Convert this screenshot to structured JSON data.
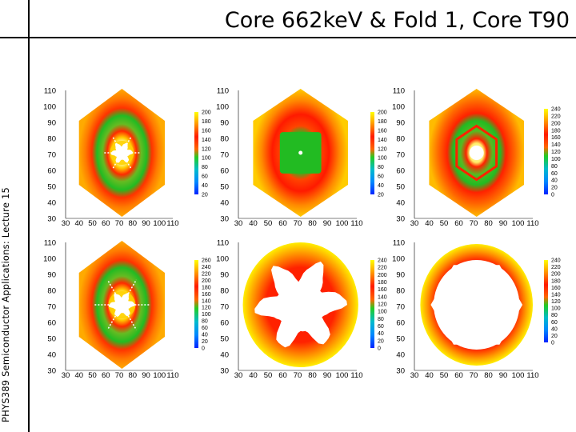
{
  "slide": {
    "title": "Core 662keV & Fold 1, Core T90",
    "side_label": "PHYS389 Semiconductor Applications: Lecture 15"
  },
  "chart_data": [
    {
      "type": "heatmap",
      "pattern": "hex-ring-star",
      "xlim": [
        30,
        110
      ],
      "ylim": [
        30,
        110
      ],
      "xticks": [
        "30",
        "40",
        "50",
        "60",
        "70",
        "80",
        "90",
        "100",
        "110"
      ],
      "yticks": [
        "30",
        "40",
        "50",
        "60",
        "70",
        "80",
        "90",
        "100",
        "110"
      ],
      "colorbar": [
        "200",
        "180",
        "160",
        "140",
        "120",
        "100",
        "80",
        "60",
        "40",
        "20"
      ]
    },
    {
      "type": "heatmap",
      "pattern": "hex-square-core",
      "xlim": [
        30,
        110
      ],
      "ylim": [
        30,
        110
      ],
      "xticks": [
        "30",
        "40",
        "50",
        "60",
        "70",
        "80",
        "90",
        "100",
        "110"
      ],
      "yticks": [
        "30",
        "40",
        "50",
        "60",
        "70",
        "80",
        "90",
        "100",
        "110"
      ],
      "colorbar": [
        "200",
        "180",
        "160",
        "140",
        "120",
        "100",
        "80",
        "60",
        "40",
        "20"
      ]
    },
    {
      "type": "heatmap",
      "pattern": "hex-hex-ring",
      "xlim": [
        30,
        110
      ],
      "ylim": [
        30,
        110
      ],
      "xticks": [
        "30",
        "40",
        "50",
        "60",
        "70",
        "80",
        "90",
        "100",
        "110"
      ],
      "yticks": [
        "30",
        "40",
        "50",
        "60",
        "70",
        "80",
        "90",
        "100",
        "110"
      ],
      "colorbar": [
        "240",
        "220",
        "200",
        "180",
        "160",
        "140",
        "120",
        "100",
        "80",
        "60",
        "40",
        "20",
        "0"
      ]
    },
    {
      "type": "heatmap",
      "pattern": "hex-ring-star",
      "xlim": [
        30,
        110
      ],
      "ylim": [
        30,
        110
      ],
      "xticks": [
        "30",
        "40",
        "50",
        "60",
        "70",
        "80",
        "90",
        "100",
        "110"
      ],
      "yticks": [
        "30",
        "40",
        "50",
        "60",
        "70",
        "80",
        "90",
        "100",
        "110"
      ],
      "colorbar": [
        "260",
        "240",
        "220",
        "200",
        "180",
        "160",
        "140",
        "120",
        "100",
        "80",
        "60",
        "40",
        "20",
        "0"
      ]
    },
    {
      "type": "heatmap",
      "pattern": "circle-star-hole",
      "xlim": [
        30,
        110
      ],
      "ylim": [
        30,
        110
      ],
      "xticks": [
        "30",
        "40",
        "50",
        "60",
        "70",
        "80",
        "90",
        "100",
        "110"
      ],
      "yticks": [
        "30",
        "40",
        "50",
        "60",
        "70",
        "80",
        "90",
        "100",
        "110"
      ],
      "colorbar": [
        "240",
        "220",
        "200",
        "180",
        "160",
        "140",
        "120",
        "100",
        "80",
        "60",
        "40",
        "20",
        "0"
      ]
    },
    {
      "type": "heatmap",
      "pattern": "circle-large-hole",
      "xlim": [
        30,
        110
      ],
      "ylim": [
        30,
        110
      ],
      "xticks": [
        "30",
        "40",
        "50",
        "60",
        "70",
        "80",
        "90",
        "100",
        "110"
      ],
      "yticks": [
        "30",
        "40",
        "50",
        "60",
        "70",
        "80",
        "90",
        "100",
        "110"
      ],
      "colorbar": [
        "240",
        "220",
        "200",
        "180",
        "160",
        "140",
        "120",
        "100",
        "80",
        "60",
        "40",
        "20",
        "0"
      ]
    }
  ],
  "colors": {
    "center": "#ffffff",
    "yellow": "#ffe600",
    "orange": "#ff8800",
    "red": "#ff1a00",
    "green": "#1ec21e",
    "cb_blue": "#0044ff"
  }
}
